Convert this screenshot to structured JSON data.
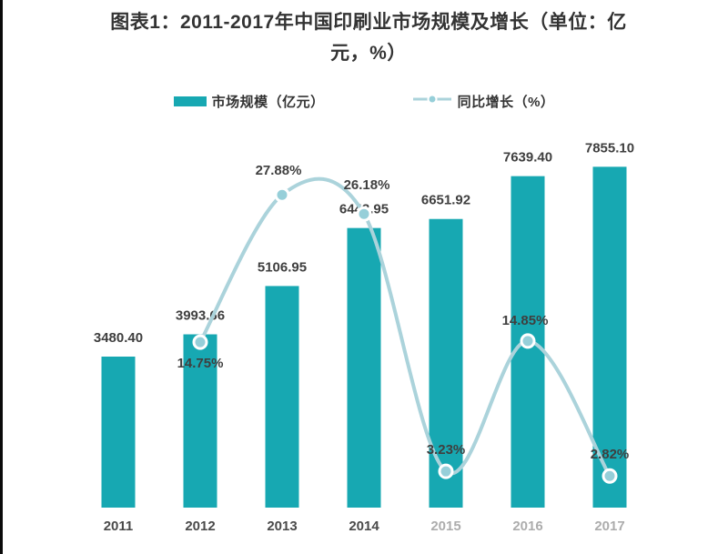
{
  "title": {
    "line1": "图表1：2011-2017年中国印刷业市场规模及增长（单位：亿",
    "line2": "元，%）"
  },
  "legend": {
    "items": [
      {
        "label": "市场规模（亿元）",
        "type": "bar"
      },
      {
        "label": "同比增长（%）",
        "type": "line"
      }
    ]
  },
  "colors": {
    "bar": "#17A8B2",
    "line": "#ABD3DB",
    "marker_fill": "#96CFD9",
    "marker_stroke": "#FFFFFF",
    "data_label": "#3F3F3F",
    "axis_label": "#4A4A4A",
    "title": "#333333"
  },
  "chart_data": {
    "type": "bar",
    "subtype": "bar-line-combo",
    "title": "图表1：2011-2017年中国印刷业市场规模及增长（单位：亿元，%）",
    "categories": [
      "2011",
      "2012",
      "2013",
      "2014",
      "2015",
      "2016",
      "2017"
    ],
    "series": [
      {
        "name": "市场规模（亿元）",
        "type": "bar",
        "axis": "left",
        "values": [
          3480.4,
          3993.66,
          5106.95,
          6443.95,
          6651.92,
          7639.4,
          7855.1
        ],
        "labels": [
          "3480.40",
          "3993.66",
          "5106.95",
          "6443.95",
          "6651.92",
          "7639.40",
          "7855.10"
        ]
      },
      {
        "name": "同比增长（%）",
        "type": "line",
        "axis": "right",
        "categories": [
          "2012",
          "2013",
          "2014",
          "2015",
          "2016",
          "2017"
        ],
        "values": [
          14.75,
          27.88,
          26.18,
          3.23,
          14.85,
          2.82
        ],
        "labels": [
          "14.75%",
          "27.88%",
          "26.18%",
          "3.23%",
          "14.85%",
          "2.82%"
        ]
      }
    ],
    "xlabel": "",
    "ylabel_left": "亿元",
    "ylabel_right": "%",
    "ylim_left": [
      0,
      8800
    ],
    "ylim_right": [
      0,
      30
    ],
    "grid": false,
    "value_axes_visible": false,
    "data_labels": true,
    "legend_position": "top",
    "line_smoothing": "spline"
  }
}
